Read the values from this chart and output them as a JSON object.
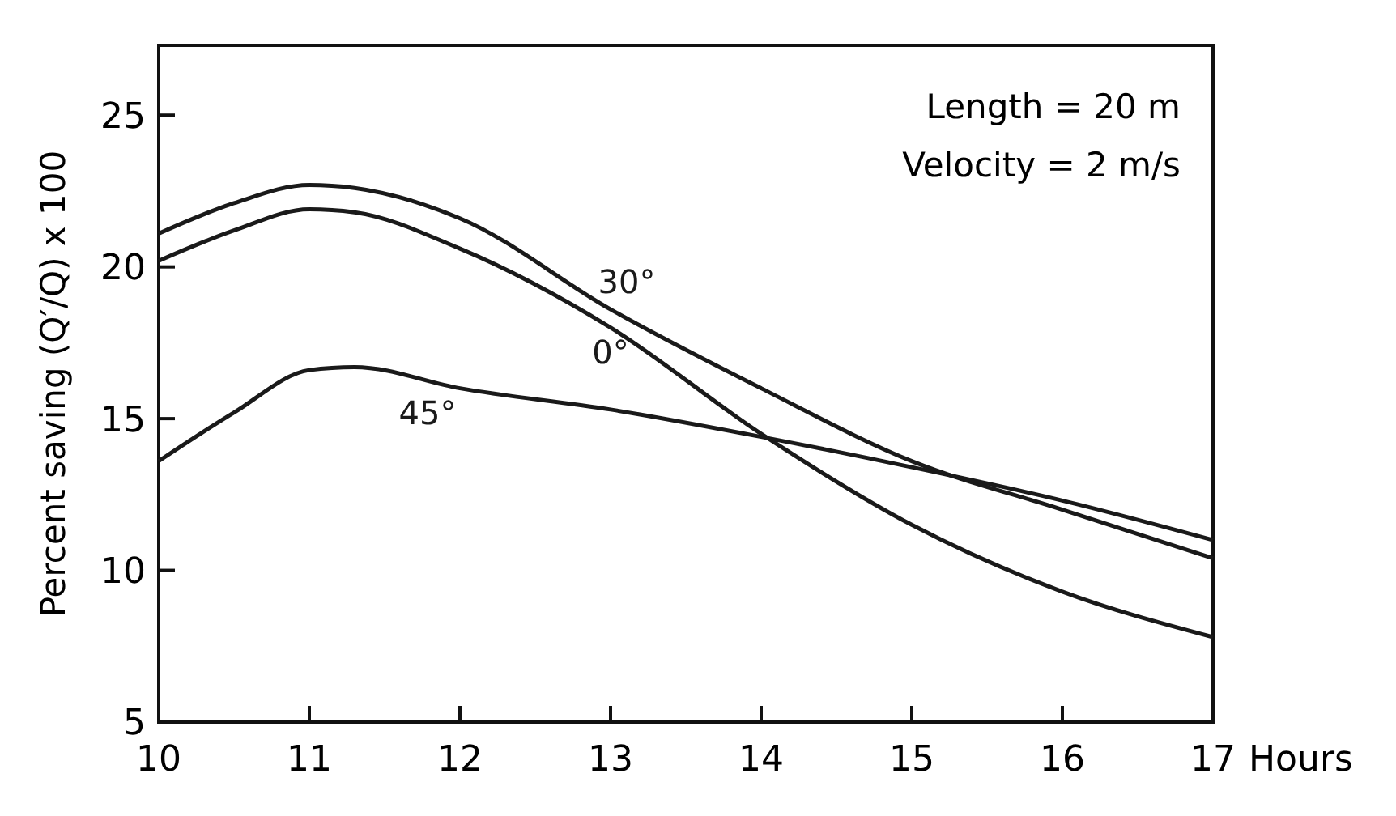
{
  "chart_data": {
    "type": "line",
    "xlabel": "Hours",
    "ylabel": "Percent saving (Q′/Q) x 100",
    "x": [
      10,
      10.5,
      11,
      11.3,
      12,
      13,
      14,
      15,
      16,
      17
    ],
    "series": [
      {
        "name": "30°",
        "color": "#1a1a1a",
        "values": [
          21.1,
          22.1,
          22.7,
          22.6,
          21.6,
          18.6,
          16.0,
          13.6,
          12.0,
          10.4
        ]
      },
      {
        "name": "0°",
        "color": "#1a1a1a",
        "values": [
          20.2,
          21.2,
          21.9,
          21.8,
          20.6,
          18.0,
          14.5,
          11.5,
          9.3,
          7.8
        ]
      },
      {
        "name": "45°",
        "color": "#1a1a1a",
        "values": [
          13.6,
          15.2,
          16.6,
          16.7,
          16.0,
          15.3,
          14.4,
          13.4,
          12.3,
          11.0
        ]
      }
    ],
    "annotations": [
      "Length = 20 m",
      "Velocity = 2 m/s"
    ],
    "xlim": [
      10,
      17
    ],
    "ylim": [
      5,
      27.3
    ],
    "xticks": [
      10,
      11,
      12,
      13,
      14,
      15,
      16,
      17
    ],
    "yticks": [
      5,
      10,
      15,
      20,
      25
    ],
    "grid": false,
    "marker": "none",
    "line_style": "solid"
  }
}
